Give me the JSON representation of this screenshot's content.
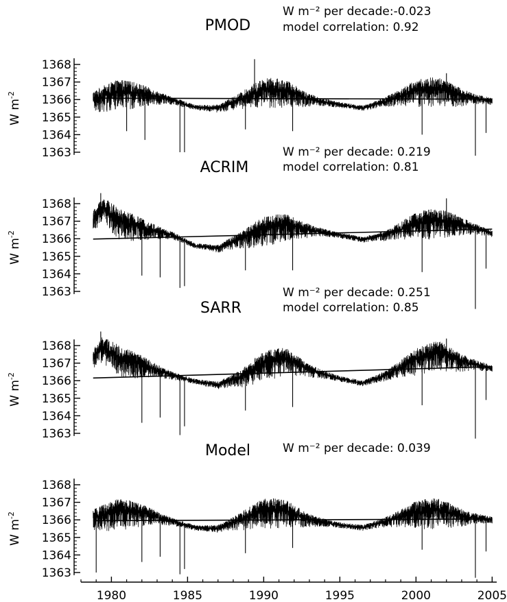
{
  "chart_data": {
    "type": "line",
    "x_axis": {
      "ticks": [
        1980,
        1985,
        1990,
        1995,
        2000,
        2005
      ],
      "tick_labels": [
        "1980",
        "1985",
        "1990",
        "1995",
        "2000",
        "2005"
      ],
      "range": [
        1978,
        2005.3
      ]
    },
    "y_axis": {
      "label_base": "W m",
      "label_sup": "-2",
      "ticks": [
        1363,
        1364,
        1365,
        1366,
        1367,
        1368
      ],
      "tick_labels": [
        "1363",
        "1364",
        "1365",
        "1366",
        "1367",
        "1368"
      ],
      "range": [
        1362.8,
        1368.3
      ]
    },
    "data_period": [
      1978.8,
      2005.0
    ],
    "panels": [
      {
        "title": "PMOD",
        "trend_text": "W m⁻² per decade:-0.023",
        "corr_text": "model correlation: 0.92",
        "baseline": 1366.05,
        "trend_per_decade": -0.023,
        "trend_line": {
          "x": [
            1978.8,
            2005.0
          ],
          "y": [
            1366.08,
            1366.02
          ]
        },
        "cycle": [
          {
            "x": 1978.8,
            "y": 1366.0
          },
          {
            "x": 1980.5,
            "y": 1366.45
          },
          {
            "x": 1982.0,
            "y": 1366.35
          },
          {
            "x": 1984.0,
            "y": 1365.95
          },
          {
            "x": 1985.5,
            "y": 1365.55
          },
          {
            "x": 1987.0,
            "y": 1365.5
          },
          {
            "x": 1988.5,
            "y": 1366.0
          },
          {
            "x": 1990.0,
            "y": 1366.55
          },
          {
            "x": 1991.5,
            "y": 1366.5
          },
          {
            "x": 1993.0,
            "y": 1366.0
          },
          {
            "x": 1995.0,
            "y": 1365.7
          },
          {
            "x": 1996.5,
            "y": 1365.5
          },
          {
            "x": 1998.0,
            "y": 1365.9
          },
          {
            "x": 2000.0,
            "y": 1366.5
          },
          {
            "x": 2001.5,
            "y": 1366.6
          },
          {
            "x": 2003.0,
            "y": 1366.2
          },
          {
            "x": 2005.0,
            "y": 1365.9
          }
        ],
        "spikes": [
          {
            "x": 1984.5,
            "y": 1363.0
          },
          {
            "x": 1984.8,
            "y": 1363.0
          },
          {
            "x": 1982.2,
            "y": 1363.7
          },
          {
            "x": 1981.0,
            "y": 1364.2
          },
          {
            "x": 1988.8,
            "y": 1364.3
          },
          {
            "x": 1989.4,
            "y": 1368.3
          },
          {
            "x": 1991.9,
            "y": 1364.2
          },
          {
            "x": 2000.4,
            "y": 1364.0
          },
          {
            "x": 2003.9,
            "y": 1362.8
          },
          {
            "x": 2004.6,
            "y": 1364.1
          },
          {
            "x": 2002.0,
            "y": 1367.5
          }
        ]
      },
      {
        "title": "ACRIM",
        "trend_text": "W m⁻² per decade: 0.219",
        "corr_text": "model correlation: 0.81",
        "baseline": 1366.2,
        "trend_per_decade": 0.219,
        "trend_line": {
          "x": [
            1978.8,
            2005.0
          ],
          "y": [
            1365.98,
            1366.55
          ]
        },
        "cycle": [
          {
            "x": 1978.8,
            "y": 1367.1
          },
          {
            "x": 1979.4,
            "y": 1367.8
          },
          {
            "x": 1980.5,
            "y": 1367.0
          },
          {
            "x": 1982.0,
            "y": 1366.65
          },
          {
            "x": 1984.0,
            "y": 1366.2
          },
          {
            "x": 1985.5,
            "y": 1365.6
          },
          {
            "x": 1987.0,
            "y": 1365.45
          },
          {
            "x": 1988.5,
            "y": 1366.0
          },
          {
            "x": 1990.0,
            "y": 1366.6
          },
          {
            "x": 1991.5,
            "y": 1366.8
          },
          {
            "x": 1993.0,
            "y": 1366.5
          },
          {
            "x": 1995.0,
            "y": 1366.2
          },
          {
            "x": 1996.5,
            "y": 1365.95
          },
          {
            "x": 1998.0,
            "y": 1366.2
          },
          {
            "x": 2000.0,
            "y": 1366.9
          },
          {
            "x": 2001.5,
            "y": 1367.05
          },
          {
            "x": 2003.0,
            "y": 1366.8
          },
          {
            "x": 2005.0,
            "y": 1366.3
          }
        ],
        "spikes": [
          {
            "x": 1979.3,
            "y": 1368.6
          },
          {
            "x": 1984.5,
            "y": 1363.2
          },
          {
            "x": 1984.8,
            "y": 1363.3
          },
          {
            "x": 1982.0,
            "y": 1363.9
          },
          {
            "x": 1983.2,
            "y": 1363.8
          },
          {
            "x": 1988.8,
            "y": 1364.2
          },
          {
            "x": 1991.9,
            "y": 1364.2
          },
          {
            "x": 2000.4,
            "y": 1364.1
          },
          {
            "x": 2003.9,
            "y": 1362.0
          },
          {
            "x": 2002.0,
            "y": 1368.3
          },
          {
            "x": 2004.6,
            "y": 1364.3
          }
        ]
      },
      {
        "title": "SARR",
        "trend_text": "W m⁻² per decade: 0.251",
        "corr_text": "model correlation: 0.85",
        "baseline": 1366.4,
        "trend_per_decade": 0.251,
        "trend_line": {
          "x": [
            1978.8,
            2005.0
          ],
          "y": [
            1366.15,
            1366.8
          ]
        },
        "cycle": [
          {
            "x": 1978.8,
            "y": 1367.3
          },
          {
            "x": 1979.4,
            "y": 1367.9
          },
          {
            "x": 1980.5,
            "y": 1367.3
          },
          {
            "x": 1982.0,
            "y": 1366.9
          },
          {
            "x": 1984.0,
            "y": 1366.3
          },
          {
            "x": 1985.5,
            "y": 1365.95
          },
          {
            "x": 1987.0,
            "y": 1365.75
          },
          {
            "x": 1988.5,
            "y": 1366.2
          },
          {
            "x": 1990.0,
            "y": 1367.0
          },
          {
            "x": 1991.5,
            "y": 1367.25
          },
          {
            "x": 1993.0,
            "y": 1366.6
          },
          {
            "x": 1995.0,
            "y": 1366.1
          },
          {
            "x": 1996.5,
            "y": 1365.85
          },
          {
            "x": 1998.0,
            "y": 1366.3
          },
          {
            "x": 2000.0,
            "y": 1367.2
          },
          {
            "x": 2001.5,
            "y": 1367.6
          },
          {
            "x": 2003.0,
            "y": 1367.1
          },
          {
            "x": 2005.0,
            "y": 1366.7
          }
        ],
        "spikes": [
          {
            "x": 1979.3,
            "y": 1368.8
          },
          {
            "x": 1984.5,
            "y": 1362.9
          },
          {
            "x": 1984.8,
            "y": 1363.4
          },
          {
            "x": 1982.0,
            "y": 1363.6
          },
          {
            "x": 1983.2,
            "y": 1363.9
          },
          {
            "x": 1988.8,
            "y": 1364.3
          },
          {
            "x": 1991.9,
            "y": 1364.5
          },
          {
            "x": 2000.4,
            "y": 1364.6
          },
          {
            "x": 2003.9,
            "y": 1362.7
          },
          {
            "x": 2002.0,
            "y": 1368.4
          },
          {
            "x": 2004.6,
            "y": 1364.9
          }
        ]
      },
      {
        "title": "Model",
        "trend_text": "W m⁻² per decade: 0.039",
        "corr_text": "",
        "baseline": 1366.05,
        "trend_per_decade": 0.039,
        "trend_line": {
          "x": [
            1978.8,
            2005.0
          ],
          "y": [
            1365.95,
            1366.05
          ]
        },
        "cycle": [
          {
            "x": 1978.8,
            "y": 1366.1
          },
          {
            "x": 1980.5,
            "y": 1366.5
          },
          {
            "x": 1982.0,
            "y": 1366.4
          },
          {
            "x": 1984.0,
            "y": 1365.9
          },
          {
            "x": 1985.5,
            "y": 1365.55
          },
          {
            "x": 1987.0,
            "y": 1365.5
          },
          {
            "x": 1988.5,
            "y": 1366.0
          },
          {
            "x": 1990.0,
            "y": 1366.55
          },
          {
            "x": 1991.5,
            "y": 1366.5
          },
          {
            "x": 1993.0,
            "y": 1366.0
          },
          {
            "x": 1995.0,
            "y": 1365.7
          },
          {
            "x": 1996.5,
            "y": 1365.55
          },
          {
            "x": 1998.0,
            "y": 1365.9
          },
          {
            "x": 2000.0,
            "y": 1366.45
          },
          {
            "x": 2001.5,
            "y": 1366.55
          },
          {
            "x": 2003.0,
            "y": 1366.2
          },
          {
            "x": 2005.0,
            "y": 1366.0
          }
        ],
        "spikes": [
          {
            "x": 1979.0,
            "y": 1363.0
          },
          {
            "x": 1984.5,
            "y": 1362.9
          },
          {
            "x": 1984.8,
            "y": 1363.2
          },
          {
            "x": 1982.0,
            "y": 1363.6
          },
          {
            "x": 1983.2,
            "y": 1363.9
          },
          {
            "x": 1988.8,
            "y": 1364.1
          },
          {
            "x": 1991.9,
            "y": 1364.4
          },
          {
            "x": 2000.4,
            "y": 1364.3
          },
          {
            "x": 2003.9,
            "y": 1362.7
          },
          {
            "x": 2004.6,
            "y": 1364.2
          }
        ]
      }
    ]
  }
}
